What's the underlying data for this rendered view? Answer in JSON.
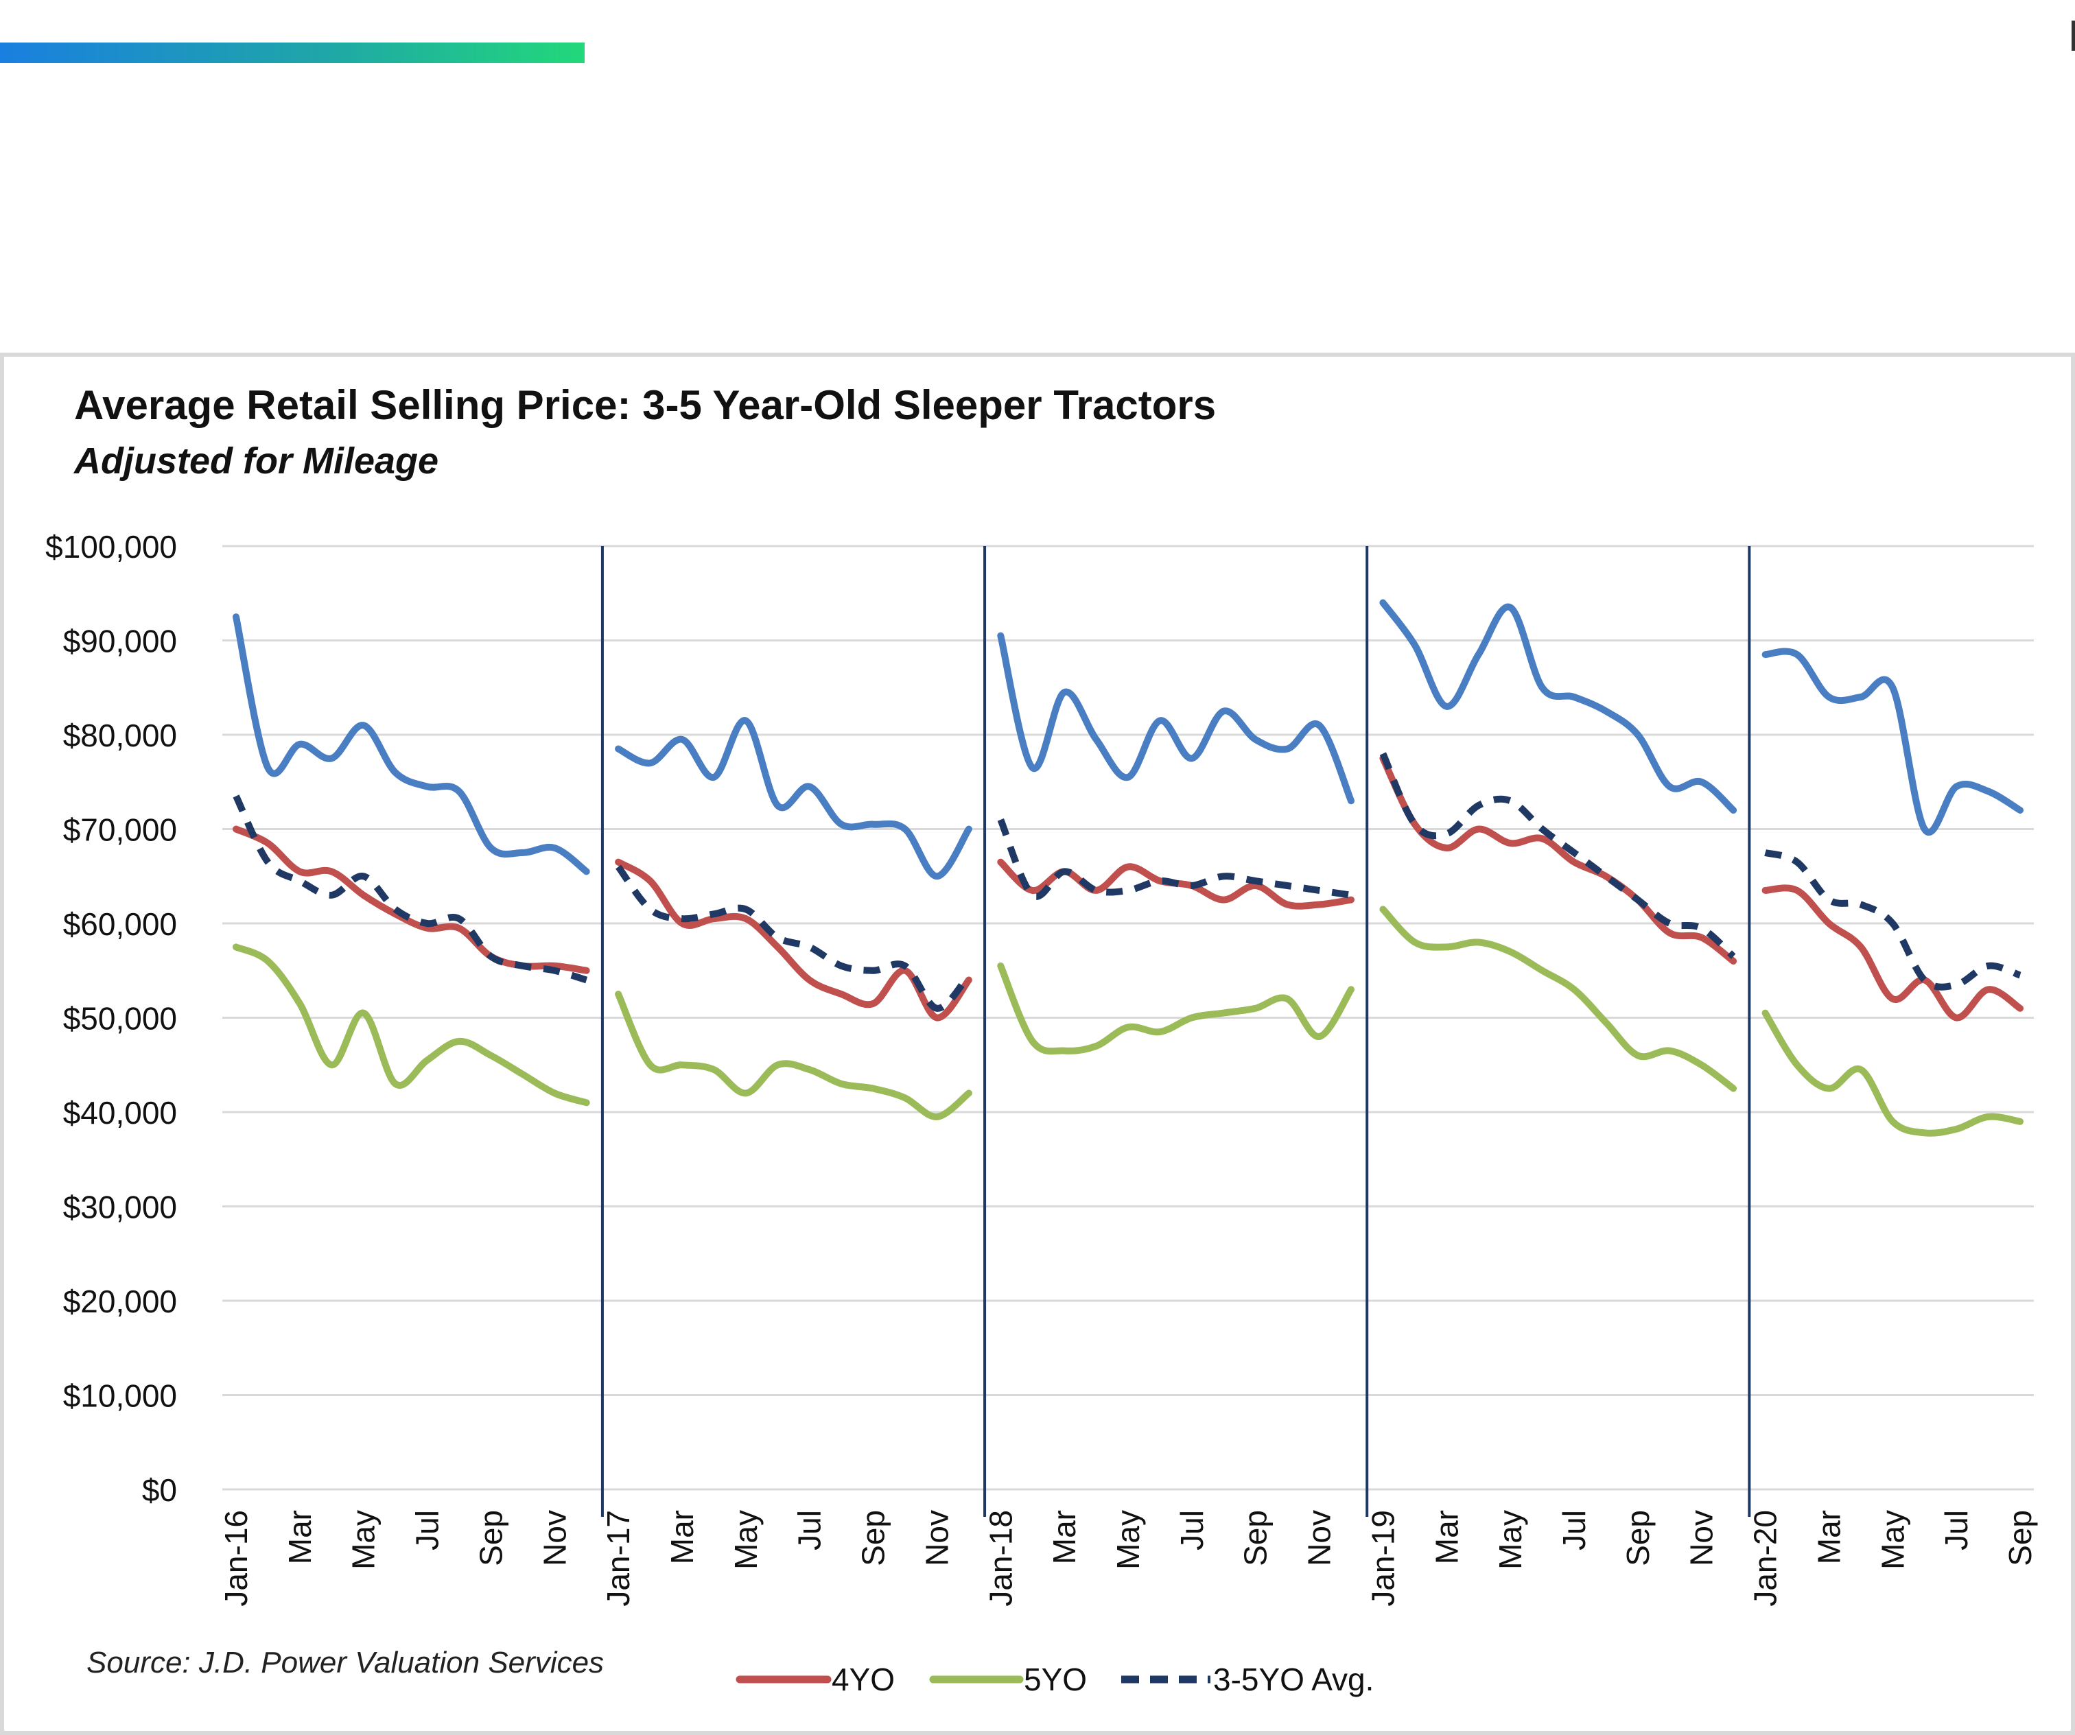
{
  "colors": {
    "accent_bar_start": "#1a7fe0",
    "accent_bar_end": "#22d87a",
    "series_3yo": "#4a7ec3",
    "series_4yo": "#c0504d",
    "series_5yo": "#9bbb59",
    "series_avg": "#1f3864",
    "gridline": "#d9d9d9",
    "year_divider": "#1f3864"
  },
  "chart_data": {
    "type": "line",
    "title": "Average Retail Selling Price: 3-5 Year-Old  Sleeper Tractors",
    "subtitle": "Adjusted for Mileage",
    "source": "Source: J.D. Power Valuation Services",
    "ylim": [
      0,
      100000
    ],
    "yticks": [
      0,
      10000,
      20000,
      30000,
      40000,
      50000,
      60000,
      70000,
      80000,
      90000,
      100000
    ],
    "ytick_labels": [
      "$0",
      "$10,000",
      "$20,000",
      "$30,000",
      "$40,000",
      "$50,000",
      "$60,000",
      "$70,000",
      "$80,000",
      "$90,000",
      "$100,000"
    ],
    "grid": true,
    "legend_position": "bottom",
    "year_dividers_after_index": [
      11,
      23,
      35,
      47
    ],
    "x_labels": [
      "Jan-16",
      "Mar",
      "May",
      "Jul",
      "Sep",
      "Nov",
      "Jan-17",
      "Mar",
      "May",
      "Jul",
      "Sep",
      "Nov",
      "Jan-18",
      "Mar",
      "May",
      "Jul",
      "Sep",
      "Nov",
      "Jan-19",
      "Mar",
      "May",
      "Jul",
      "Sep",
      "Nov",
      "Jan-20",
      "Mar",
      "May",
      "Jul",
      "Sep"
    ],
    "x_label_indices": [
      0,
      2,
      4,
      6,
      8,
      10,
      12,
      14,
      16,
      18,
      20,
      22,
      24,
      26,
      28,
      30,
      32,
      34,
      36,
      38,
      40,
      42,
      44,
      46,
      48,
      50,
      52,
      54,
      56
    ],
    "segments": [
      [
        0,
        11
      ],
      [
        12,
        23
      ],
      [
        24,
        35
      ],
      [
        36,
        47
      ],
      [
        48,
        56
      ]
    ],
    "series": [
      {
        "key": "3yo",
        "style": "solid",
        "legend": false,
        "values": [
          92500,
          76500,
          79000,
          77500,
          81000,
          76000,
          74500,
          74000,
          68000,
          67500,
          68000,
          65500,
          78500,
          77000,
          79500,
          75500,
          81500,
          72500,
          74500,
          70500,
          70500,
          70000,
          65000,
          70000,
          90500,
          76500,
          84500,
          79500,
          75500,
          81500,
          77500,
          82500,
          79500,
          78500,
          81000,
          73000,
          94000,
          89500,
          83000,
          88500,
          93500,
          85000,
          84000,
          82500,
          80000,
          74500,
          75000,
          72000,
          88500,
          88500,
          84000,
          84000,
          85000,
          70000,
          74500,
          74000,
          72000
        ]
      },
      {
        "key": "4yo",
        "name": "4YO",
        "style": "solid",
        "legend": true,
        "values": [
          70000,
          68500,
          65500,
          65500,
          63000,
          61000,
          59500,
          59500,
          56500,
          55500,
          55500,
          55000,
          66500,
          64500,
          60000,
          60500,
          60500,
          57500,
          54000,
          52500,
          51500,
          55000,
          50000,
          54000,
          66500,
          63500,
          65500,
          63500,
          66000,
          64500,
          64000,
          62500,
          64000,
          62000,
          62000,
          62500,
          77500,
          70500,
          68000,
          70000,
          68500,
          69000,
          66500,
          65000,
          62500,
          59000,
          58500,
          56000,
          63500,
          63500,
          60000,
          57500,
          52000,
          54000,
          50000,
          53000,
          51000
        ]
      },
      {
        "key": "5yo",
        "name": "5YO",
        "style": "solid",
        "legend": true,
        "values": [
          57500,
          56000,
          51500,
          45000,
          50500,
          43000,
          45500,
          47500,
          46000,
          44000,
          42000,
          41000,
          52500,
          45000,
          45000,
          44500,
          42000,
          45000,
          44500,
          43000,
          42500,
          41500,
          39500,
          42000,
          55500,
          47500,
          46500,
          47000,
          49000,
          48500,
          50000,
          50500,
          51000,
          52000,
          48000,
          53000,
          61500,
          58000,
          57500,
          58000,
          57000,
          55000,
          53000,
          49500,
          46000,
          46500,
          45000,
          42500,
          50500,
          45000,
          42500,
          44500,
          39000,
          37800,
          38200,
          39500,
          39000
        ]
      },
      {
        "key": "avg",
        "name": "3-5YO Avg.",
        "style": "dashed",
        "legend": true,
        "values": [
          73500,
          66500,
          64500,
          63000,
          65000,
          61500,
          60000,
          60500,
          56500,
          55500,
          55000,
          54000,
          66000,
          61500,
          60500,
          61000,
          61500,
          58500,
          57500,
          55500,
          55000,
          55500,
          51000,
          54500,
          71000,
          63000,
          65500,
          63500,
          63500,
          64500,
          64000,
          65000,
          64500,
          64000,
          63500,
          63000,
          78000,
          70500,
          69500,
          72500,
          73000,
          70000,
          67500,
          65000,
          62500,
          60000,
          59500,
          56500,
          67500,
          66500,
          62500,
          62000,
          60000,
          54000,
          53500,
          55500,
          54500
        ]
      }
    ]
  }
}
